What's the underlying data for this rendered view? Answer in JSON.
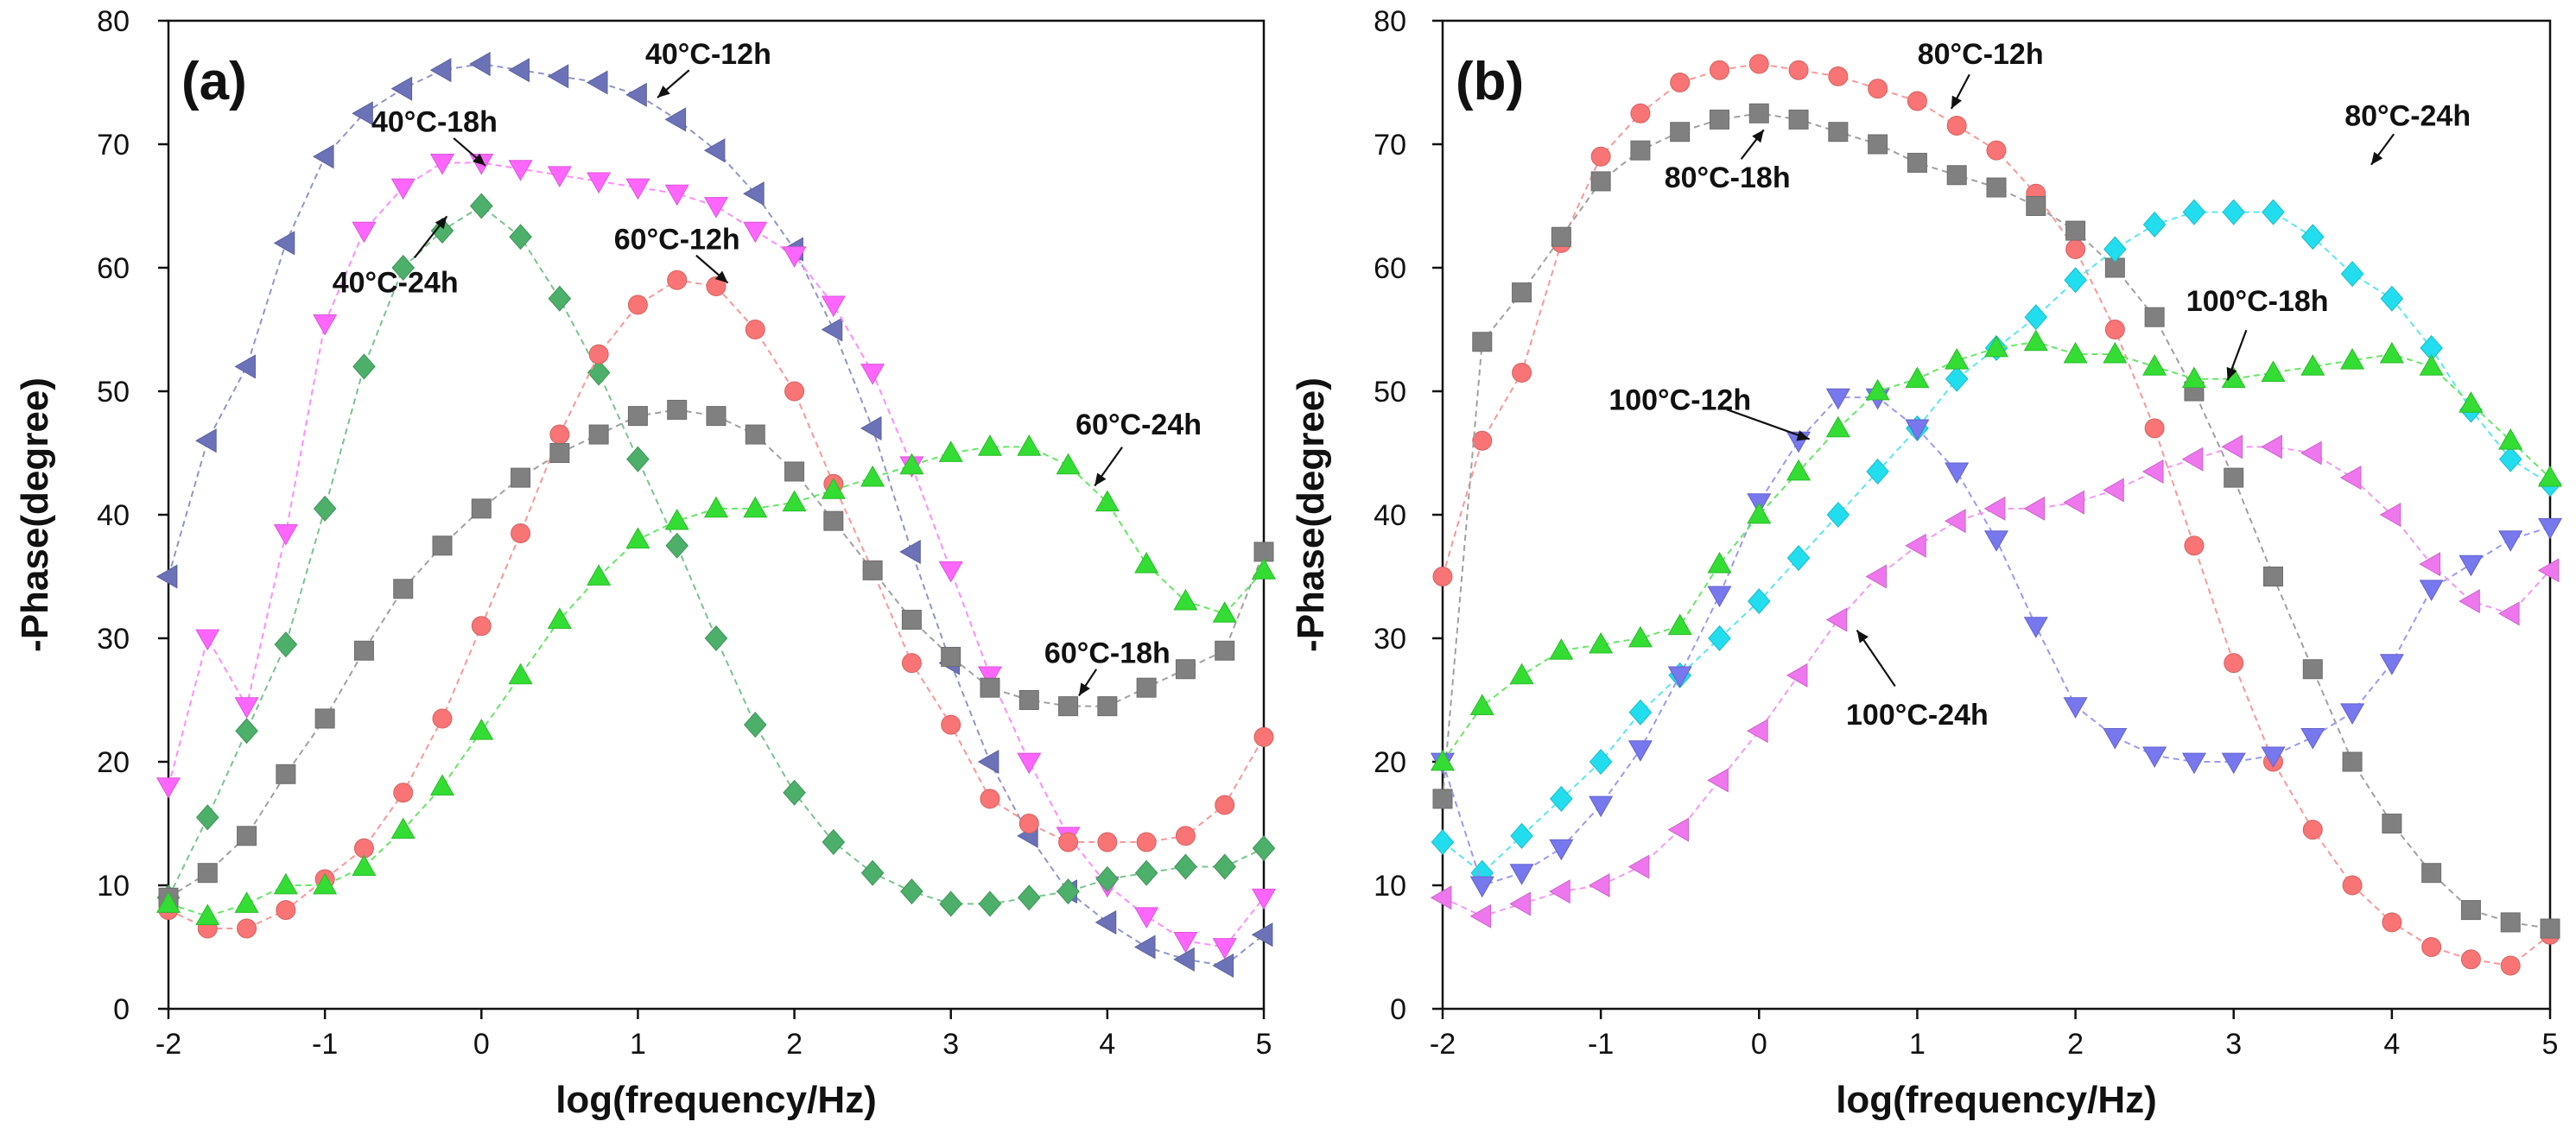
{
  "chart_data": [
    {
      "type": "scatter",
      "panel_label": "(a)",
      "xlabel": "log(frequency/Hz)",
      "ylabel": "-Phase(degree)",
      "xlim": [
        -2,
        5
      ],
      "ylim": [
        0,
        80
      ],
      "xticks": [
        "-2",
        "-1",
        "0",
        "1",
        "2",
        "3",
        "4",
        "5"
      ],
      "yticks": [
        "0",
        "10",
        "20",
        "30",
        "40",
        "50",
        "60",
        "70",
        "80"
      ],
      "series": [
        {
          "name": "40°C-12h",
          "marker": "triangle-left",
          "color": "#6B72B8",
          "x": [
            -2,
            -1.75,
            -1.5,
            -1.25,
            -1,
            -0.75,
            -0.5,
            -0.25,
            0,
            0.25,
            0.5,
            0.75,
            1,
            1.25,
            1.5,
            1.75,
            2,
            2.25,
            2.5,
            2.75,
            3,
            3.25,
            3.5,
            3.75,
            4,
            4.25,
            4.5,
            4.75,
            5
          ],
          "y": [
            35,
            46,
            52,
            62,
            69,
            72.5,
            74.5,
            76,
            76.5,
            76,
            75.5,
            75,
            74,
            72,
            69.5,
            66,
            61.5,
            55,
            47,
            37,
            28,
            20,
            14,
            9.5,
            7,
            5,
            4,
            3.5,
            6
          ]
        },
        {
          "name": "40°C-18h",
          "marker": "triangle-down",
          "color": "#FF66FF",
          "x": [
            -2,
            -1.75,
            -1.5,
            -1.25,
            -1,
            -0.75,
            -0.5,
            -0.25,
            0,
            0.25,
            0.5,
            0.75,
            1,
            1.25,
            1.5,
            1.75,
            2,
            2.25,
            2.5,
            2.75,
            3,
            3.25,
            3.5,
            3.75,
            4,
            4.25,
            4.5,
            4.75,
            5
          ],
          "y": [
            18,
            30,
            24.5,
            38.5,
            55.5,
            63,
            66.5,
            68.5,
            68.5,
            68,
            67.5,
            67,
            66.5,
            66,
            65,
            63,
            61,
            57,
            51.5,
            44,
            35.5,
            27,
            20,
            14,
            10,
            7.5,
            5.5,
            5,
            9
          ]
        },
        {
          "name": "40°C-24h",
          "marker": "diamond",
          "color": "#4CAF6A",
          "x": [
            -2,
            -1.75,
            -1.5,
            -1.25,
            -1,
            -0.75,
            -0.5,
            -0.25,
            0,
            0.25,
            0.5,
            0.75,
            1,
            1.25,
            1.5,
            1.75,
            2,
            2.25,
            2.5,
            2.75,
            3,
            3.25,
            3.5,
            3.75,
            4,
            4.25,
            4.5,
            4.75,
            5
          ],
          "y": [
            9,
            15.5,
            22.5,
            29.5,
            40.5,
            52,
            60,
            63,
            65,
            62.5,
            57.5,
            51.5,
            44.5,
            37.5,
            30,
            23,
            17.5,
            13.5,
            11,
            9.5,
            8.5,
            8.5,
            9,
            9.5,
            10.5,
            11,
            11.5,
            11.5,
            13
          ]
        },
        {
          "name": "60°C-12h",
          "marker": "circle",
          "color": "#F97474",
          "x": [
            -2,
            -1.75,
            -1.5,
            -1.25,
            -1,
            -0.75,
            -0.5,
            -0.25,
            0,
            0.25,
            0.5,
            0.75,
            1,
            1.25,
            1.5,
            1.75,
            2,
            2.25,
            2.5,
            2.75,
            3,
            3.25,
            3.5,
            3.75,
            4,
            4.25,
            4.5,
            4.75,
            5
          ],
          "y": [
            8,
            6.5,
            6.5,
            8,
            10.5,
            13,
            17.5,
            23.5,
            31,
            38.5,
            46.5,
            53,
            57,
            59,
            58.5,
            55,
            50,
            42.5,
            35.5,
            28,
            23,
            17,
            15,
            13.5,
            13.5,
            13.5,
            14,
            16.5,
            22
          ]
        },
        {
          "name": "60°C-18h",
          "marker": "square",
          "color": "#808080",
          "x": [
            -2,
            -1.75,
            -1.5,
            -1.25,
            -1,
            -0.75,
            -0.5,
            -0.25,
            0,
            0.25,
            0.5,
            0.75,
            1,
            1.25,
            1.5,
            1.75,
            2,
            2.25,
            2.5,
            2.75,
            3,
            3.25,
            3.5,
            3.75,
            4,
            4.25,
            4.5,
            4.75,
            5
          ],
          "y": [
            9,
            11,
            14,
            19,
            23.5,
            29,
            34,
            37.5,
            40.5,
            43,
            45,
            46.5,
            48,
            48.5,
            48,
            46.5,
            43.5,
            39.5,
            35.5,
            31.5,
            28.5,
            26,
            25,
            24.5,
            24.5,
            26,
            27.5,
            29,
            37
          ]
        },
        {
          "name": "60°C-24h",
          "marker": "triangle-up",
          "color": "#33DD33",
          "x": [
            -2,
            -1.75,
            -1.5,
            -1.25,
            -1,
            -0.75,
            -0.5,
            -0.25,
            0,
            0.25,
            0.5,
            0.75,
            1,
            1.25,
            1.5,
            1.75,
            2,
            2.25,
            2.5,
            2.75,
            3,
            3.25,
            3.5,
            3.75,
            4,
            4.25,
            4.5,
            4.75,
            5
          ],
          "y": [
            8.5,
            7.5,
            8.5,
            10,
            10,
            11.5,
            14.5,
            18,
            22.5,
            27,
            31.5,
            35,
            38,
            39.5,
            40.5,
            40.5,
            41,
            42,
            43,
            44,
            45,
            45.5,
            45.5,
            44,
            41,
            36,
            33,
            32,
            35.5
          ]
        }
      ],
      "annotations": [
        {
          "text": "40°C-12h",
          "series": "40°C-12h",
          "at": [
            1.1,
            73.5
          ],
          "text_at": [
            1.45,
            76.5
          ]
        },
        {
          "text": "40°C-18h",
          "series": "40°C-18h",
          "at": [
            0.05,
            68
          ],
          "text_at": [
            -0.3,
            71
          ]
        },
        {
          "text": "40°C-24h",
          "series": "40°C-24h",
          "at": [
            -0.2,
            64.5
          ],
          "text_at": [
            -0.55,
            58
          ]
        },
        {
          "text": "60°C-12h",
          "series": "60°C-12h",
          "at": [
            1.6,
            58.5
          ],
          "text_at": [
            1.25,
            61.5
          ]
        },
        {
          "text": "60°C-24h",
          "series": "60°C-24h",
          "at": [
            3.9,
            42
          ],
          "text_at": [
            4.2,
            46.5
          ]
        },
        {
          "text": "60°C-18h",
          "series": "60°C-18h",
          "at": [
            3.8,
            25
          ],
          "text_at": [
            4.0,
            28
          ]
        }
      ]
    },
    {
      "type": "scatter",
      "panel_label": "(b)",
      "xlabel": "log(frequency/Hz)",
      "ylabel": "-Phase(degree)",
      "xlim": [
        -2,
        5
      ],
      "ylim": [
        0,
        80
      ],
      "xticks": [
        "-2",
        "-1",
        "0",
        "1",
        "2",
        "3",
        "4",
        "5"
      ],
      "yticks": [
        "0",
        "10",
        "20",
        "30",
        "40",
        "50",
        "60",
        "70",
        "80"
      ],
      "series": [
        {
          "name": "80°C-12h",
          "marker": "circle",
          "color": "#F97474",
          "x": [
            -2,
            -1.75,
            -1.5,
            -1.25,
            -1,
            -0.75,
            -0.5,
            -0.25,
            0,
            0.25,
            0.5,
            0.75,
            1,
            1.25,
            1.5,
            1.75,
            2,
            2.25,
            2.5,
            2.75,
            3,
            3.25,
            3.5,
            3.75,
            4,
            4.25,
            4.5,
            4.75,
            5
          ],
          "y": [
            35,
            46,
            51.5,
            62,
            69,
            72.5,
            75,
            76,
            76.5,
            76,
            75.5,
            74.5,
            73.5,
            71.5,
            69.5,
            66,
            61.5,
            55,
            47,
            37.5,
            28,
            20,
            14.5,
            10,
            7,
            5,
            4,
            3.5,
            6
          ]
        },
        {
          "name": "80°C-18h",
          "marker": "square",
          "color": "#808080",
          "x": [
            -2,
            -1.75,
            -1.5,
            -1.25,
            -1,
            -0.75,
            -0.5,
            -0.25,
            0,
            0.25,
            0.5,
            0.75,
            1,
            1.25,
            1.5,
            1.75,
            2,
            2.25,
            2.5,
            2.75,
            3,
            3.25,
            3.5,
            3.75,
            4,
            4.25,
            4.5,
            4.75,
            5
          ],
          "y": [
            17,
            54,
            58,
            62.5,
            67,
            69.5,
            71,
            72,
            72.5,
            72,
            71,
            70,
            68.5,
            67.5,
            66.5,
            65,
            63,
            60,
            56,
            50,
            43,
            35,
            27.5,
            20,
            15,
            11,
            8,
            7,
            6.5
          ]
        },
        {
          "name": "80°C-24h",
          "marker": "diamond",
          "color": "#22DDEE",
          "x": [
            -2,
            -1.75,
            -1.5,
            -1.25,
            -1,
            -0.75,
            -0.5,
            -0.25,
            0,
            0.25,
            0.5,
            0.75,
            1,
            1.25,
            1.5,
            1.75,
            2,
            2.25,
            2.5,
            2.75,
            3,
            3.25,
            3.5,
            3.75,
            4,
            4.25,
            4.5,
            4.75,
            5
          ],
          "y": [
            13.5,
            11,
            14,
            17,
            20,
            24,
            27,
            30,
            33,
            36.5,
            40,
            43.5,
            47,
            51,
            53.5,
            56,
            59,
            61.5,
            63.5,
            64.5,
            64.5,
            64.5,
            62.5,
            59.5,
            57.5,
            53.5,
            48.5,
            44.5,
            42.5
          ]
        },
        {
          "name": "100°C-12h",
          "marker": "triangle-down",
          "color": "#7777EE",
          "x": [
            -2,
            -1.75,
            -1.5,
            -1.25,
            -1,
            -0.75,
            -0.5,
            -0.25,
            0,
            0.25,
            0.5,
            0.75,
            1,
            1.25,
            1.5,
            1.75,
            2,
            2.25,
            2.5,
            2.75,
            3,
            3.25,
            3.5,
            3.75,
            4,
            4.25,
            4.5,
            4.75,
            5
          ],
          "y": [
            20,
            10,
            11,
            13,
            16.5,
            21,
            27,
            33.5,
            41,
            46,
            49.5,
            49.5,
            47,
            43.5,
            38,
            31,
            24.5,
            22,
            20.5,
            20,
            20,
            20.5,
            22,
            24,
            28,
            34,
            36,
            38,
            39
          ]
        },
        {
          "name": "100°C-18h",
          "marker": "triangle-up",
          "color": "#33DD33",
          "x": [
            -2,
            -1.75,
            -1.5,
            -1.25,
            -1,
            -0.75,
            -0.5,
            -0.25,
            0,
            0.25,
            0.5,
            0.75,
            1,
            1.25,
            1.5,
            1.75,
            2,
            2.25,
            2.5,
            2.75,
            3,
            3.25,
            3.5,
            3.75,
            4,
            4.25,
            4.5,
            4.75,
            5
          ],
          "y": [
            20,
            24.5,
            27,
            29,
            29.5,
            30,
            31,
            36,
            40,
            43.5,
            47,
            50,
            51,
            52.5,
            53.5,
            54,
            53,
            53,
            52,
            51,
            51,
            51.5,
            52,
            52.5,
            53,
            52,
            49,
            46,
            43
          ]
        },
        {
          "name": "100°C-24h",
          "marker": "triangle-left",
          "color": "#EE77EE",
          "x": [
            -2,
            -1.75,
            -1.5,
            -1.25,
            -1,
            -0.75,
            -0.5,
            -0.25,
            0,
            0.25,
            0.5,
            0.75,
            1,
            1.25,
            1.5,
            1.75,
            2,
            2.25,
            2.5,
            2.75,
            3,
            3.25,
            3.5,
            3.75,
            4,
            4.25,
            4.5,
            4.75,
            5
          ],
          "y": [
            9,
            7.5,
            8.5,
            9.5,
            10,
            11.5,
            14.5,
            18.5,
            22.5,
            27,
            31.5,
            35,
            37.5,
            39.5,
            40.5,
            40.5,
            41,
            42,
            43.5,
            44.5,
            45.5,
            45.5,
            45,
            43,
            40,
            36,
            33,
            32,
            35.5
          ]
        }
      ],
      "annotations": [
        {
          "text": "80°C-12h",
          "series": "80°C-12h",
          "at": [
            1.2,
            72.5
          ],
          "text_at": [
            1.4,
            76.5
          ]
        },
        {
          "text": "80°C-18h",
          "series": "80°C-18h",
          "at": [
            0.05,
            71.5
          ],
          "text_at": [
            -0.2,
            66.5
          ]
        },
        {
          "text": "80°C-24h",
          "series": "80°C-24h",
          "at": [
            3.85,
            68
          ],
          "text_at": [
            4.1,
            71.5
          ]
        },
        {
          "text": "100°C-18h",
          "series": "100°C-18h",
          "at": [
            2.95,
            50.5
          ],
          "text_at": [
            3.15,
            56.5
          ]
        },
        {
          "text": "100°C-12h",
          "series": "100°C-12h",
          "at": [
            0.35,
            46
          ],
          "text_at": [
            -0.5,
            48.5
          ]
        },
        {
          "text": "100°C-24h",
          "series": "100°C-24h",
          "at": [
            0.6,
            31
          ],
          "text_at": [
            1.0,
            23
          ]
        }
      ]
    }
  ]
}
